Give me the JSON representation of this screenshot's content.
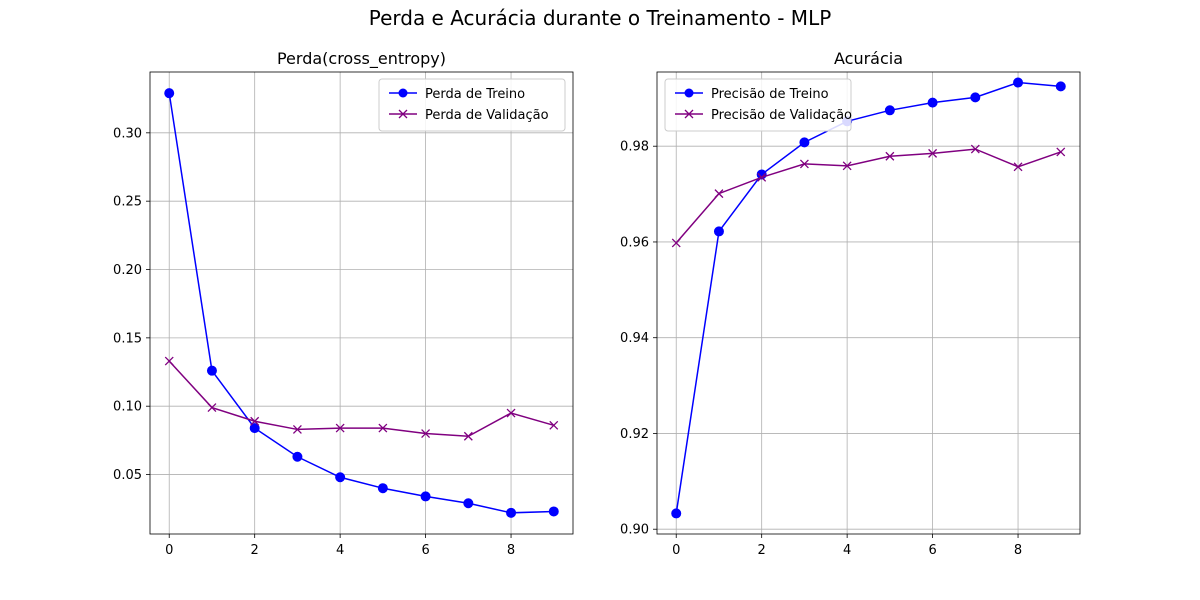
{
  "figure": {
    "suptitle": "Perda e Acurácia durante o Treinamento - MLP"
  },
  "colors": {
    "train": "#0000ff",
    "val": "#800080",
    "grid": "#b0b0b0"
  },
  "chart_data": [
    {
      "type": "line",
      "title": "Perda(cross_entropy)",
      "xlabel": "",
      "ylabel": "",
      "xlim": [
        -0.45,
        9.45
      ],
      "ylim": [
        0.0065,
        0.3445
      ],
      "xticks": [
        0,
        2,
        4,
        6,
        8
      ],
      "yticks": [
        0.05,
        0.1,
        0.15,
        0.2,
        0.25,
        0.3
      ],
      "ytick_labels": [
        "0.05",
        "0.10",
        "0.15",
        "0.20",
        "0.25",
        "0.30"
      ],
      "grid": true,
      "legend_position": "upper right",
      "x": [
        0,
        1,
        2,
        3,
        4,
        5,
        6,
        7,
        8,
        9
      ],
      "series": [
        {
          "name": "Perda de Treino",
          "marker": "o",
          "color": "#0000ff",
          "values": [
            0.329,
            0.126,
            0.084,
            0.063,
            0.048,
            0.04,
            0.034,
            0.029,
            0.022,
            0.023
          ]
        },
        {
          "name": "Perda de Validação",
          "marker": "x",
          "color": "#800080",
          "values": [
            0.133,
            0.099,
            0.089,
            0.083,
            0.084,
            0.084,
            0.08,
            0.078,
            0.095,
            0.086
          ]
        }
      ]
    },
    {
      "type": "line",
      "title": "Acurácia",
      "xlabel": "",
      "ylabel": "",
      "xlim": [
        -0.45,
        9.45
      ],
      "ylim": [
        0.899,
        0.9955
      ],
      "xticks": [
        0,
        2,
        4,
        6,
        8
      ],
      "yticks": [
        0.9,
        0.92,
        0.94,
        0.96,
        0.98
      ],
      "ytick_labels": [
        "0.90",
        "0.92",
        "0.94",
        "0.96",
        "0.98"
      ],
      "grid": true,
      "legend_position": "upper left",
      "x": [
        0,
        1,
        2,
        3,
        4,
        5,
        6,
        7,
        8,
        9
      ],
      "series": [
        {
          "name": "Precisão de Treino",
          "marker": "o",
          "color": "#0000ff",
          "values": [
            0.9033,
            0.9622,
            0.9741,
            0.9808,
            0.9852,
            0.9875,
            0.9891,
            0.9902,
            0.9933,
            0.9925
          ]
        },
        {
          "name": "Precisão de Validação",
          "marker": "x",
          "color": "#800080",
          "values": [
            0.9598,
            0.9701,
            0.9735,
            0.9763,
            0.9759,
            0.9779,
            0.9785,
            0.9794,
            0.9757,
            0.9788
          ]
        }
      ]
    }
  ]
}
